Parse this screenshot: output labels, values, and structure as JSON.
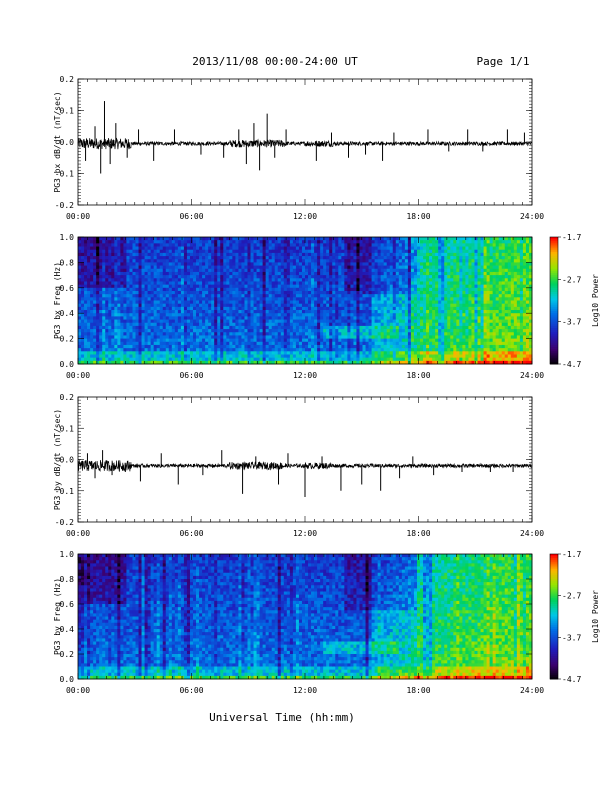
{
  "header": {
    "title": "2013/11/08  00:00-24:00 UT",
    "page": "Page 1/1"
  },
  "footer": {
    "xlabel": "Universal Time (hh:mm)"
  },
  "colorbar": {
    "label": "Log10 Power",
    "ticks": [
      "-1.7",
      "-2.7",
      "-3.7",
      "-4.7"
    ],
    "range": [
      -4.7,
      -1.7
    ]
  },
  "time_ticks": [
    "00:00",
    "06:00",
    "12:00",
    "18:00",
    "24:00"
  ],
  "chart_data": [
    {
      "type": "line",
      "ylabel": "PG3 bx dB/dt (nT/sec)",
      "xlim": [
        0,
        24
      ],
      "ylim": [
        -0.2,
        0.2
      ],
      "yticks": [
        "0.2",
        "0.1",
        "0.0",
        "-0.1",
        "-0.2"
      ],
      "baseline": -0.005,
      "spikes": [
        {
          "t": 0.4,
          "v": -0.06
        },
        {
          "t": 0.9,
          "v": 0.05
        },
        {
          "t": 1.2,
          "v": -0.1
        },
        {
          "t": 1.4,
          "v": 0.13
        },
        {
          "t": 1.7,
          "v": -0.07
        },
        {
          "t": 2.0,
          "v": 0.06
        },
        {
          "t": 2.6,
          "v": -0.05
        },
        {
          "t": 3.2,
          "v": 0.04
        },
        {
          "t": 4.0,
          "v": -0.06
        },
        {
          "t": 5.1,
          "v": 0.04
        },
        {
          "t": 6.5,
          "v": -0.04
        },
        {
          "t": 7.7,
          "v": -0.05
        },
        {
          "t": 8.5,
          "v": 0.04
        },
        {
          "t": 8.9,
          "v": -0.07
        },
        {
          "t": 9.3,
          "v": 0.06
        },
        {
          "t": 9.6,
          "v": -0.09
        },
        {
          "t": 10.0,
          "v": 0.09
        },
        {
          "t": 10.4,
          "v": -0.05
        },
        {
          "t": 11.0,
          "v": 0.04
        },
        {
          "t": 12.6,
          "v": -0.06
        },
        {
          "t": 13.4,
          "v": 0.03
        },
        {
          "t": 14.3,
          "v": -0.05
        },
        {
          "t": 15.2,
          "v": -0.04
        },
        {
          "t": 16.1,
          "v": -0.06
        },
        {
          "t": 16.7,
          "v": 0.03
        },
        {
          "t": 18.5,
          "v": 0.04
        },
        {
          "t": 19.6,
          "v": -0.03
        },
        {
          "t": 20.6,
          "v": 0.04
        },
        {
          "t": 21.4,
          "v": -0.03
        },
        {
          "t": 22.7,
          "v": 0.04
        },
        {
          "t": 23.6,
          "v": 0.03
        }
      ]
    },
    {
      "type": "heatmap",
      "ylabel": "PG3 bx Freq (Hz)",
      "xlim": [
        0,
        24
      ],
      "ylim": [
        0.0,
        1.0
      ],
      "yticks": [
        "1.0",
        "0.8",
        "0.6",
        "0.4",
        "0.2",
        "0.0"
      ],
      "zlabel": "Log10 Power"
    },
    {
      "type": "line",
      "ylabel": "PG3 by dB/dt (nT/sec)",
      "xlim": [
        0,
        24
      ],
      "ylim": [
        -0.2,
        0.2
      ],
      "yticks": [
        "0.2",
        "0.1",
        "0.0",
        "-0.1",
        "-0.2"
      ],
      "baseline": -0.02,
      "spikes": [
        {
          "t": 0.5,
          "v": 0.02
        },
        {
          "t": 0.9,
          "v": -0.06
        },
        {
          "t": 1.3,
          "v": 0.03
        },
        {
          "t": 1.8,
          "v": -0.05
        },
        {
          "t": 2.5,
          "v": -0.04
        },
        {
          "t": 3.3,
          "v": -0.07
        },
        {
          "t": 4.4,
          "v": 0.02
        },
        {
          "t": 5.3,
          "v": -0.08
        },
        {
          "t": 6.6,
          "v": -0.05
        },
        {
          "t": 7.6,
          "v": 0.03
        },
        {
          "t": 8.7,
          "v": -0.11
        },
        {
          "t": 9.4,
          "v": 0.01
        },
        {
          "t": 10.6,
          "v": -0.08
        },
        {
          "t": 11.1,
          "v": 0.02
        },
        {
          "t": 12.0,
          "v": -0.12
        },
        {
          "t": 12.9,
          "v": 0.01
        },
        {
          "t": 13.9,
          "v": -0.1
        },
        {
          "t": 15.0,
          "v": -0.08
        },
        {
          "t": 16.0,
          "v": -0.1
        },
        {
          "t": 17.0,
          "v": -0.06
        },
        {
          "t": 17.7,
          "v": 0.01
        },
        {
          "t": 18.8,
          "v": -0.05
        },
        {
          "t": 20.3,
          "v": -0.04
        },
        {
          "t": 21.8,
          "v": -0.04
        },
        {
          "t": 23.0,
          "v": -0.04
        }
      ]
    },
    {
      "type": "heatmap",
      "ylabel": "PG3 by Freq (Hz)",
      "xlim": [
        0,
        24
      ],
      "ylim": [
        0.0,
        1.0
      ],
      "yticks": [
        "1.0",
        "0.8",
        "0.6",
        "0.4",
        "0.2",
        "0.0"
      ],
      "zlabel": "Log10 Power"
    }
  ]
}
